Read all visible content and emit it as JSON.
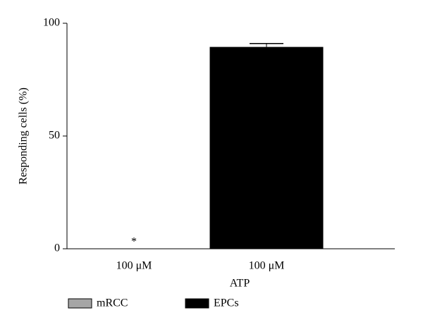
{
  "chart_data": {
    "type": "bar",
    "ylabel": "Responding cells (%)",
    "xlabel": "ATP",
    "categories": [
      "100 μM",
      "100 μM"
    ],
    "series": [
      {
        "name": "mRCC",
        "color": "#a6a6a6",
        "values": [
          0,
          null
        ]
      },
      {
        "name": "EPCs",
        "color": "#000000",
        "values": [
          null,
          89.5
        ],
        "errors": [
          null,
          1.5
        ]
      }
    ],
    "annotations": [
      {
        "category": 0,
        "text": "*"
      }
    ],
    "ylim": [
      0,
      100
    ],
    "yticks": [
      0,
      50,
      100
    ],
    "grid": false
  }
}
